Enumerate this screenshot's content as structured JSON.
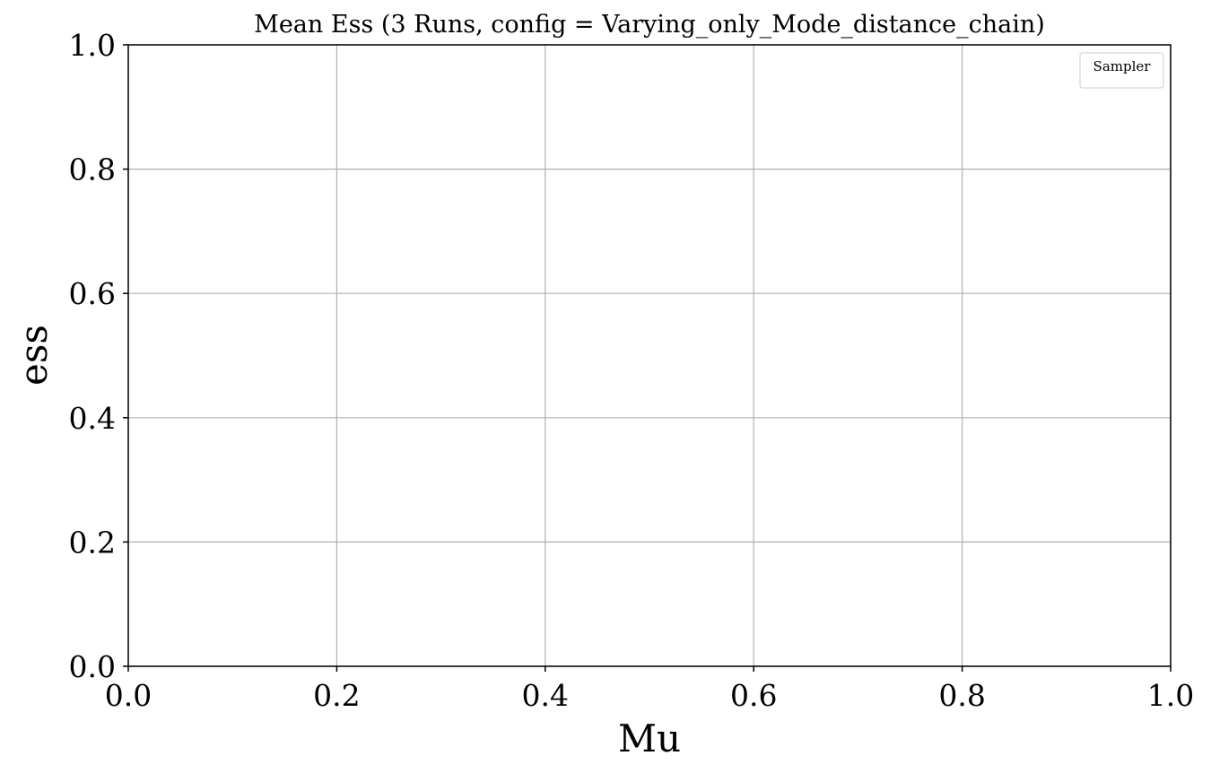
{
  "chart_data": {
    "type": "line",
    "title": "Mean Ess (3 Runs, config = Varying_only_Mode_distance_chain)",
    "xlabel": "Mu",
    "ylabel": "ess",
    "xlim": [
      0.0,
      1.0
    ],
    "ylim": [
      0.0,
      1.0
    ],
    "x_ticks": [
      "0.0",
      "0.2",
      "0.4",
      "0.6",
      "0.8",
      "1.0"
    ],
    "y_ticks": [
      "0.0",
      "0.2",
      "0.4",
      "0.6",
      "0.8",
      "1.0"
    ],
    "grid": true,
    "legend": {
      "title": "Sampler",
      "placement": "top-right",
      "entries": []
    },
    "series": []
  }
}
